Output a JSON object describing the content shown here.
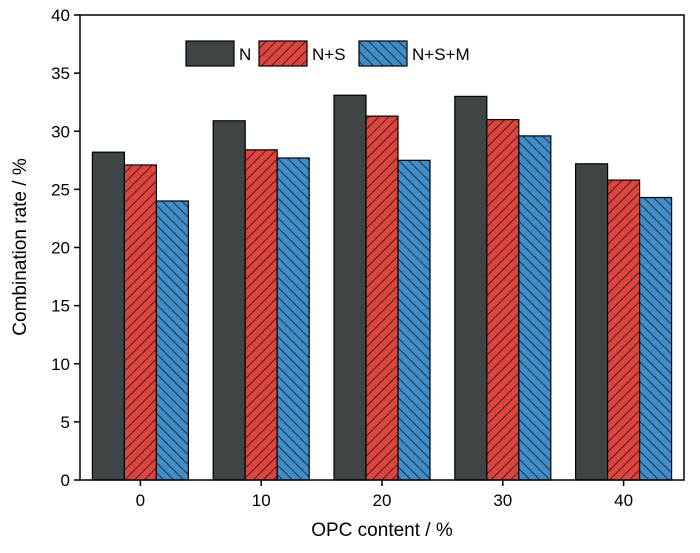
{
  "chart_data": {
    "type": "bar",
    "categories": [
      "0",
      "10",
      "20",
      "30",
      "40"
    ],
    "series": [
      {
        "name": "N",
        "values": [
          28.2,
          30.9,
          33.1,
          33.0,
          27.2
        ],
        "color": "#3f4547"
      },
      {
        "name": "N+S",
        "values": [
          27.1,
          28.4,
          31.3,
          31.0,
          25.8
        ],
        "color": "#e0443e"
      },
      {
        "name": "N+S+M",
        "values": [
          24.0,
          27.7,
          27.5,
          29.6,
          24.3
        ],
        "color": "#3f8dc9"
      }
    ],
    "xlabel": "OPC content / %",
    "ylabel": "Combination rate / %",
    "ylim": [
      0,
      40
    ],
    "yticks": [
      "0",
      "5",
      "10",
      "15",
      "20",
      "25",
      "30",
      "35",
      "40"
    ],
    "grid": false,
    "legend_position": "top-center"
  }
}
